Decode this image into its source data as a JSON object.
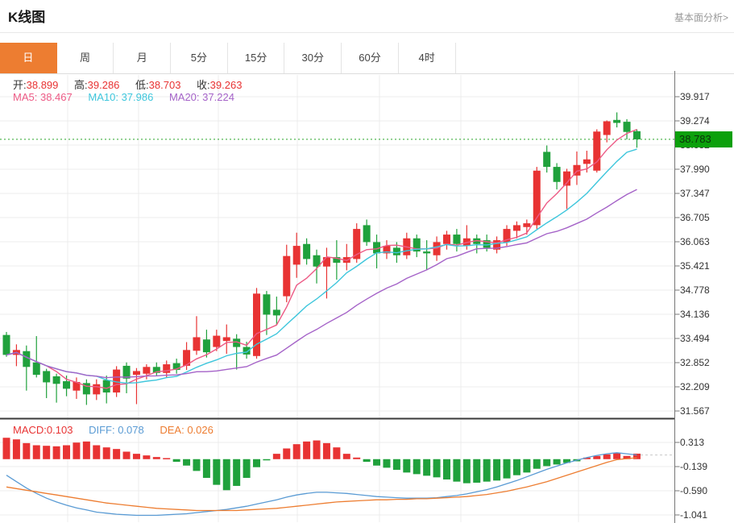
{
  "header": {
    "title": "K线图",
    "link": "基本面分析>"
  },
  "tabs": {
    "items": [
      "日",
      "周",
      "月",
      "5分",
      "15分",
      "30分",
      "60分",
      "4时"
    ],
    "active_index": 0
  },
  "ohlc": {
    "open_label": "开:",
    "open": "38.899",
    "high_label": "高:",
    "high": "39.286",
    "low_label": "低:",
    "low": "38.703",
    "close_label": "收:",
    "close": "39.263"
  },
  "ma": {
    "ma5_label": "MA5:",
    "ma5": "38.467",
    "ma10_label": "MA10:",
    "ma10": "37.986",
    "ma20_label": "MA20:",
    "ma20": "37.224"
  },
  "macd_info": {
    "macd_label": "MACD:",
    "macd": "0.103",
    "diff_label": "DIFF:",
    "diff": "0.078",
    "dea_label": "DEA:",
    "dea": "0.026"
  },
  "price_axis": {
    "labels": [
      "39.917",
      "39.274",
      "38.632",
      "37.990",
      "37.347",
      "36.705",
      "36.063",
      "35.421",
      "34.778",
      "34.136",
      "33.494",
      "32.852",
      "32.209",
      "31.567"
    ],
    "current_price": "38.783"
  },
  "macd_axis": {
    "labels": [
      "0.313",
      "-0.139",
      "-0.590",
      "-1.041"
    ]
  },
  "colors": {
    "up": "#e83333",
    "down": "#20a13c",
    "ma5": "#ed5a85",
    "ma10": "#3ec6dc",
    "ma20": "#a563c8",
    "diff": "#5a9bd4",
    "dea": "#ed7d31",
    "accent_orange": "#ed7d31",
    "badge_green": "#0ca00c",
    "price_line_green": "#2aa52a",
    "grid": "#ececec",
    "axis": "#777777",
    "divider": "#3a3a3a"
  },
  "chart_data": [
    {
      "type": "candlestick",
      "title": "K线图",
      "timeframe": "日",
      "legend": [
        "MA5",
        "MA10",
        "MA20"
      ],
      "ma_current": {
        "MA5": 38.467,
        "MA10": 37.986,
        "MA20": 37.224
      },
      "last_candle_info": {
        "open": 38.899,
        "high": 39.286,
        "low": 38.703,
        "close": 39.263
      },
      "current_price": 38.783,
      "y_axis_ticks": [
        39.917,
        39.274,
        38.632,
        37.99,
        37.347,
        36.705,
        36.063,
        35.421,
        34.778,
        34.136,
        33.494,
        32.852,
        32.209,
        31.567
      ],
      "grid": true,
      "candles_ohlc": [
        [
          33.58,
          33.66,
          33.0,
          33.05
        ],
        [
          33.05,
          33.33,
          32.75,
          33.18
        ],
        [
          33.15,
          33.3,
          32.1,
          32.73
        ],
        [
          32.85,
          33.55,
          32.45,
          32.52
        ],
        [
          32.62,
          32.68,
          31.9,
          32.32
        ],
        [
          32.48,
          32.55,
          31.78,
          32.28
        ],
        [
          32.35,
          32.5,
          31.95,
          32.15
        ],
        [
          32.1,
          32.45,
          31.88,
          32.33
        ],
        [
          32.3,
          32.4,
          31.72,
          32.0
        ],
        [
          32.0,
          32.4,
          31.85,
          32.27
        ],
        [
          32.38,
          32.5,
          31.76,
          32.05
        ],
        [
          32.05,
          32.75,
          31.93,
          32.66
        ],
        [
          32.76,
          32.85,
          32.03,
          32.42
        ],
        [
          32.52,
          32.7,
          31.74,
          32.62
        ],
        [
          32.55,
          32.8,
          32.4,
          32.73
        ],
        [
          32.73,
          32.85,
          32.5,
          32.57
        ],
        [
          32.57,
          32.9,
          32.45,
          32.8
        ],
        [
          32.83,
          32.95,
          32.55,
          32.65
        ],
        [
          32.76,
          33.39,
          32.65,
          33.18
        ],
        [
          33.16,
          34.08,
          33.05,
          33.52
        ],
        [
          33.46,
          33.72,
          32.98,
          33.12
        ],
        [
          33.26,
          33.72,
          33.15,
          33.56
        ],
        [
          33.42,
          33.86,
          33.08,
          33.52
        ],
        [
          33.48,
          33.6,
          32.66,
          33.26
        ],
        [
          33.26,
          33.4,
          32.95,
          33.06
        ],
        [
          33.02,
          34.83,
          32.95,
          34.68
        ],
        [
          34.66,
          34.75,
          33.58,
          34.12
        ],
        [
          34.25,
          34.6,
          33.85,
          34.1
        ],
        [
          34.61,
          35.98,
          34.45,
          35.68
        ],
        [
          35.45,
          36.3,
          35.1,
          35.95
        ],
        [
          36.0,
          36.15,
          35.45,
          35.6
        ],
        [
          35.7,
          35.85,
          34.95,
          35.4
        ],
        [
          35.4,
          35.9,
          34.55,
          35.65
        ],
        [
          35.65,
          36.1,
          35.05,
          35.5
        ],
        [
          35.5,
          36.0,
          35.3,
          35.65
        ],
        [
          35.6,
          36.55,
          35.5,
          36.4
        ],
        [
          36.5,
          36.65,
          35.95,
          36.05
        ],
        [
          36.05,
          36.25,
          35.35,
          35.75
        ],
        [
          35.75,
          36.1,
          35.6,
          35.95
        ],
        [
          35.9,
          36.05,
          35.5,
          35.7
        ],
        [
          35.7,
          36.3,
          35.6,
          36.15
        ],
        [
          36.15,
          36.25,
          35.65,
          35.8
        ],
        [
          35.8,
          36.1,
          35.3,
          35.75
        ],
        [
          35.7,
          36.2,
          35.55,
          36.05
        ],
        [
          36.0,
          36.35,
          35.85,
          36.25
        ],
        [
          36.25,
          36.4,
          35.8,
          36.0
        ],
        [
          35.95,
          36.5,
          35.85,
          36.15
        ],
        [
          36.15,
          36.25,
          35.75,
          36.0
        ],
        [
          36.1,
          36.25,
          35.8,
          35.9
        ],
        [
          35.85,
          36.2,
          35.75,
          36.1
        ],
        [
          36.05,
          36.5,
          35.95,
          36.4
        ],
        [
          36.35,
          36.6,
          36.15,
          36.5
        ],
        [
          36.45,
          36.65,
          36.25,
          36.55
        ],
        [
          36.5,
          38.05,
          36.4,
          37.95
        ],
        [
          38.45,
          38.62,
          37.9,
          38.05
        ],
        [
          38.05,
          38.15,
          37.45,
          37.65
        ],
        [
          37.55,
          38.0,
          36.93,
          37.93
        ],
        [
          37.82,
          38.46,
          37.57,
          38.1
        ],
        [
          38.13,
          38.48,
          37.9,
          38.25
        ],
        [
          37.95,
          39.05,
          37.9,
          38.99
        ],
        [
          38.899,
          39.286,
          38.703,
          39.263
        ],
        [
          39.3,
          39.5,
          39.1,
          39.22
        ],
        [
          39.25,
          39.32,
          38.78,
          38.98
        ],
        [
          39.0,
          39.05,
          38.56,
          38.783
        ]
      ]
    },
    {
      "type": "bar",
      "name": "MACD",
      "current": {
        "MACD": 0.103,
        "DIFF": 0.078,
        "DEA": 0.026
      },
      "y_axis_ticks": [
        0.313,
        -0.139,
        -0.59,
        -1.041
      ],
      "histogram": [
        0.4,
        0.37,
        0.3,
        0.26,
        0.25,
        0.24,
        0.26,
        0.31,
        0.33,
        0.26,
        0.22,
        0.19,
        0.14,
        0.1,
        0.07,
        0.04,
        0.02,
        -0.05,
        -0.12,
        -0.22,
        -0.35,
        -0.48,
        -0.58,
        -0.5,
        -0.35,
        -0.15,
        -0.02,
        0.1,
        0.2,
        0.28,
        0.33,
        0.35,
        0.3,
        0.22,
        0.1,
        0.03,
        -0.05,
        -0.12,
        -0.16,
        -0.2,
        -0.25,
        -0.28,
        -0.31,
        -0.34,
        -0.38,
        -0.42,
        -0.45,
        -0.44,
        -0.42,
        -0.4,
        -0.36,
        -0.3,
        -0.25,
        -0.18,
        -0.13,
        -0.1,
        -0.07,
        -0.04,
        0.03,
        0.06,
        0.09,
        0.11,
        0.06,
        0.103
      ],
      "diff": [
        -0.3,
        -0.42,
        -0.54,
        -0.64,
        -0.73,
        -0.8,
        -0.86,
        -0.91,
        -0.95,
        -0.99,
        -1.01,
        -1.03,
        -1.04,
        -1.05,
        -1.05,
        -1.05,
        -1.04,
        -1.03,
        -1.02,
        -1.0,
        -0.98,
        -0.96,
        -0.94,
        -0.91,
        -0.88,
        -0.84,
        -0.8,
        -0.76,
        -0.71,
        -0.67,
        -0.64,
        -0.62,
        -0.62,
        -0.63,
        -0.64,
        -0.66,
        -0.68,
        -0.7,
        -0.71,
        -0.72,
        -0.73,
        -0.73,
        -0.73,
        -0.72,
        -0.7,
        -0.68,
        -0.65,
        -0.61,
        -0.57,
        -0.52,
        -0.46,
        -0.4,
        -0.33,
        -0.26,
        -0.19,
        -0.13,
        -0.07,
        -0.02,
        0.03,
        0.07,
        0.1,
        0.12,
        0.1,
        0.078
      ],
      "dea": [
        -0.52,
        -0.55,
        -0.58,
        -0.61,
        -0.64,
        -0.67,
        -0.7,
        -0.73,
        -0.76,
        -0.79,
        -0.82,
        -0.84,
        -0.86,
        -0.88,
        -0.9,
        -0.92,
        -0.93,
        -0.94,
        -0.95,
        -0.96,
        -0.96,
        -0.96,
        -0.96,
        -0.96,
        -0.95,
        -0.94,
        -0.93,
        -0.92,
        -0.9,
        -0.88,
        -0.86,
        -0.84,
        -0.82,
        -0.8,
        -0.79,
        -0.78,
        -0.77,
        -0.76,
        -0.76,
        -0.75,
        -0.75,
        -0.74,
        -0.74,
        -0.73,
        -0.72,
        -0.71,
        -0.7,
        -0.68,
        -0.66,
        -0.63,
        -0.6,
        -0.56,
        -0.52,
        -0.47,
        -0.42,
        -0.36,
        -0.3,
        -0.24,
        -0.18,
        -0.12,
        -0.06,
        -0.01,
        0.01,
        0.026
      ]
    }
  ]
}
